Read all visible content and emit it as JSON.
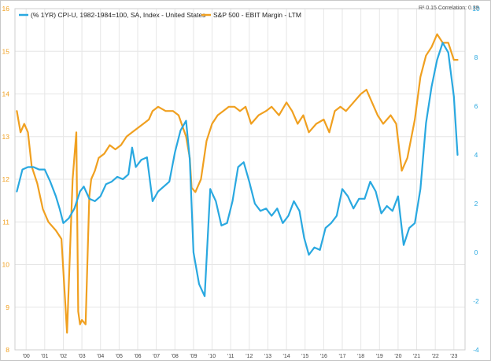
{
  "chart_data": {
    "type": "line",
    "stats_text": "R² 0.15 Correlation: 0.39",
    "legend": [
      {
        "label": "(% 1YR) CPI-U, 1982-1984=100, SA, Index - United States",
        "color": "#29a8e0"
      },
      {
        "label": "S&P 500 - EBIT Margin - LTM",
        "color": "#f0a020"
      }
    ],
    "x_tick_labels": [
      "'00",
      "'01",
      "'02",
      "'03",
      "'04",
      "'05",
      "'06",
      "'07",
      "'08",
      "'09",
      "'10",
      "'11",
      "'12",
      "'13",
      "'14",
      "'15",
      "'16",
      "'17",
      "'18",
      "'19",
      "'20",
      "'21",
      "'22",
      "'23"
    ],
    "left_axis": {
      "ticks": [
        "8",
        "9",
        "10",
        "11",
        "12",
        "13",
        "14",
        "15",
        "16"
      ],
      "ylim": [
        8,
        16
      ],
      "color": "#f0a020"
    },
    "right_axis": {
      "ticks": [
        "-4",
        "-2",
        "0",
        "2",
        "4",
        "6",
        "8",
        "10"
      ],
      "ylim": [
        -4,
        10
      ],
      "color": "#29a8e0"
    },
    "grid": true,
    "series": [
      {
        "name": "S&P 500 - EBIT Margin - LTM",
        "axis": "left",
        "color": "#f0a020",
        "x": [
          1999.5,
          1999.7,
          1999.9,
          2000.1,
          2000.3,
          2000.6,
          2000.9,
          2001.2,
          2001.6,
          2001.9,
          2002.2,
          2002.5,
          2002.7,
          2002.8,
          2002.9,
          2003.0,
          2003.2,
          2003.4,
          2003.5,
          2003.7,
          2003.9,
          2004.2,
          2004.5,
          2004.8,
          2005.1,
          2005.4,
          2005.7,
          2006.0,
          2006.3,
          2006.6,
          2006.8,
          2007.1,
          2007.5,
          2007.9,
          2008.2,
          2008.6,
          2008.8,
          2008.9,
          2009.1,
          2009.4,
          2009.7,
          2010.0,
          2010.3,
          2010.6,
          2010.9,
          2011.2,
          2011.5,
          2011.8,
          2012.1,
          2012.5,
          2012.9,
          2013.2,
          2013.6,
          2014.0,
          2014.3,
          2014.6,
          2014.9,
          2015.2,
          2015.6,
          2016.0,
          2016.3,
          2016.6,
          2016.9,
          2017.2,
          2017.6,
          2018.0,
          2018.3,
          2018.6,
          2018.9,
          2019.2,
          2019.6,
          2019.9,
          2020.2,
          2020.5,
          2020.9,
          2021.2,
          2021.5,
          2021.8,
          2022.1,
          2022.4,
          2022.7,
          2023.0,
          2023.2
        ],
        "values": [
          13.6,
          13.1,
          13.3,
          13.1,
          12.3,
          11.9,
          11.3,
          11.0,
          10.8,
          10.6,
          8.4,
          12.0,
          13.1,
          8.9,
          8.6,
          8.7,
          8.6,
          11.6,
          12.0,
          12.2,
          12.5,
          12.6,
          12.8,
          12.7,
          12.8,
          13.0,
          13.1,
          13.2,
          13.3,
          13.4,
          13.6,
          13.7,
          13.6,
          13.6,
          13.5,
          13.0,
          12.5,
          11.8,
          11.7,
          12.0,
          12.9,
          13.3,
          13.5,
          13.6,
          13.7,
          13.7,
          13.6,
          13.7,
          13.3,
          13.5,
          13.6,
          13.7,
          13.5,
          13.8,
          13.6,
          13.3,
          13.5,
          13.1,
          13.3,
          13.4,
          13.1,
          13.6,
          13.7,
          13.6,
          13.8,
          14.0,
          14.1,
          13.8,
          13.5,
          13.3,
          13.5,
          13.3,
          12.2,
          12.5,
          13.4,
          14.4,
          14.9,
          15.1,
          15.4,
          15.2,
          15.2,
          14.8,
          14.8
        ]
      },
      {
        "name": "(% 1YR) CPI-U, 1982-1984=100, SA, Index - United States",
        "axis": "right",
        "color": "#29a8e0",
        "x": [
          1999.5,
          1999.8,
          2000.1,
          2000.4,
          2000.7,
          2001.0,
          2001.3,
          2001.6,
          2001.8,
          2002.0,
          2002.3,
          2002.6,
          2002.9,
          2003.1,
          2003.4,
          2003.7,
          2004.0,
          2004.3,
          2004.6,
          2004.9,
          2005.2,
          2005.5,
          2005.7,
          2005.9,
          2006.2,
          2006.5,
          2006.8,
          2007.1,
          2007.4,
          2007.7,
          2008.0,
          2008.3,
          2008.6,
          2008.8,
          2009.0,
          2009.3,
          2009.6,
          2009.9,
          2010.2,
          2010.5,
          2010.8,
          2011.1,
          2011.4,
          2011.7,
          2012.0,
          2012.3,
          2012.6,
          2012.9,
          2013.2,
          2013.5,
          2013.8,
          2014.1,
          2014.4,
          2014.7,
          2014.95,
          2015.2,
          2015.5,
          2015.8,
          2016.1,
          2016.4,
          2016.7,
          2017.0,
          2017.3,
          2017.6,
          2017.9,
          2018.2,
          2018.5,
          2018.8,
          2019.1,
          2019.4,
          2019.7,
          2020.0,
          2020.3,
          2020.6,
          2020.9,
          2021.2,
          2021.5,
          2021.8,
          2022.1,
          2022.4,
          2022.7,
          2023.0,
          2023.2
        ],
        "values": [
          2.5,
          3.4,
          3.5,
          3.5,
          3.4,
          3.4,
          2.9,
          2.3,
          1.8,
          1.2,
          1.4,
          1.8,
          2.5,
          2.7,
          2.2,
          2.1,
          2.3,
          2.8,
          2.9,
          3.1,
          3.0,
          3.2,
          4.3,
          3.5,
          3.8,
          3.9,
          2.1,
          2.5,
          2.7,
          2.9,
          4.1,
          5.0,
          5.4,
          3.8,
          0.0,
          -1.3,
          -1.8,
          2.6,
          2.1,
          1.1,
          1.2,
          2.1,
          3.5,
          3.7,
          2.9,
          2.0,
          1.7,
          1.8,
          1.5,
          1.8,
          1.2,
          1.5,
          2.1,
          1.7,
          0.6,
          -0.1,
          0.2,
          0.1,
          1.0,
          1.2,
          1.5,
          2.6,
          2.3,
          1.8,
          2.2,
          2.2,
          2.9,
          2.5,
          1.6,
          1.9,
          1.7,
          2.3,
          0.3,
          1.0,
          1.2,
          2.6,
          5.3,
          6.8,
          7.9,
          8.6,
          8.2,
          6.4,
          4.0
        ]
      }
    ],
    "xlim": [
      1999.4,
      2023.6
    ]
  }
}
